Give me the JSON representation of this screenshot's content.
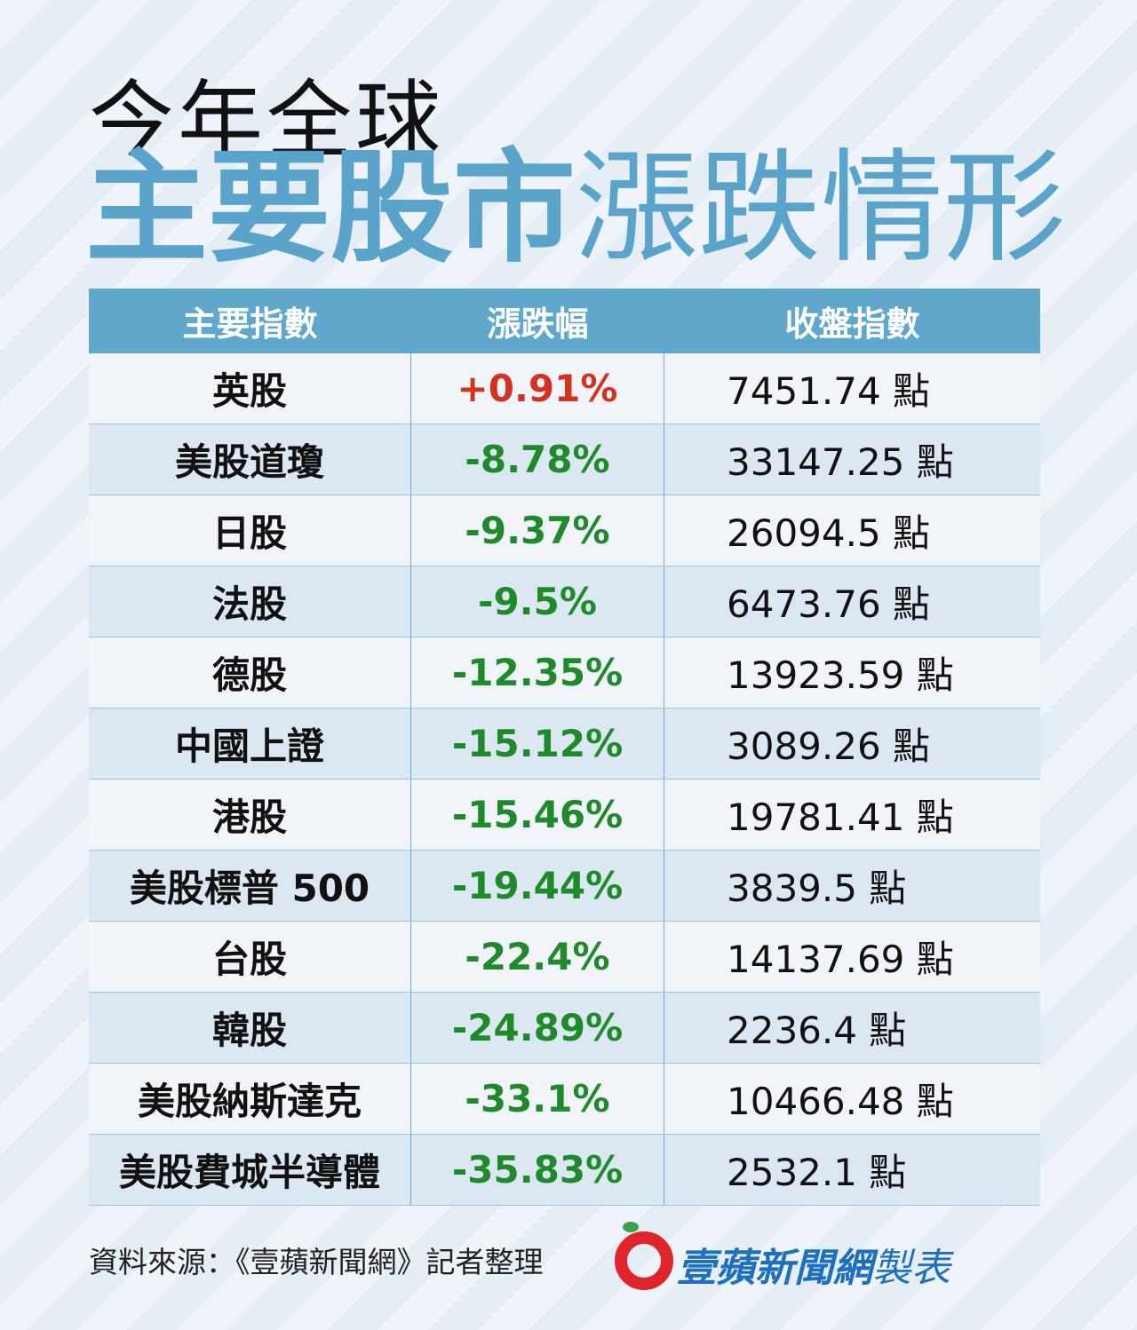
{
  "header": {
    "title_line1": "今年全球",
    "title_bold": "主要股市",
    "title_light": "漲跌情形"
  },
  "table": {
    "columns": [
      "主要指數",
      "漲跌幅",
      "收盤指數"
    ],
    "rows": [
      [
        "英股",
        "+0.91%",
        "7451.74 點"
      ],
      [
        "美股道瓊",
        "-8.78%",
        "33147.25 點"
      ],
      [
        "日股",
        "-9.37%",
        "26094.5 點"
      ],
      [
        "法股",
        "-9.5%",
        "6473.76 點"
      ],
      [
        "德股",
        "-12.35%",
        "13923.59 點"
      ],
      [
        "中國上證",
        "-15.12%",
        "3089.26 點"
      ],
      [
        "港股",
        "-15.46%",
        "19781.41 點"
      ],
      [
        "美股標普 500",
        "-19.44%",
        "3839.5 點"
      ],
      [
        "台股",
        "-22.4%",
        "14137.69 點"
      ],
      [
        "韓股",
        "-24.89%",
        "2236.4 點"
      ],
      [
        "美股納斯達克",
        "-33.1%",
        "10466.48 點"
      ],
      [
        "美股費城半導體",
        "-35.83%",
        "2532.1 點"
      ]
    ],
    "positive_color": "#d4321f",
    "negative_color": "#1f8a2a"
  },
  "footer": {
    "source": "資料來源：《壹蘋新聞網》記者整理",
    "brand": "壹蘋新聞網",
    "brand_suffix": "製表"
  }
}
